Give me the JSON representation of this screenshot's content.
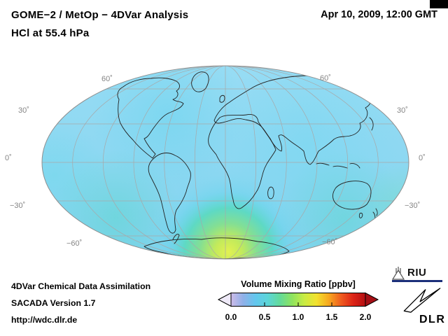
{
  "header": {
    "title_line1": "GOME−2 / MetOp − 4DVar Analysis",
    "title_line2": "HCl at 55.4 hPa",
    "datetime": "Apr 10, 2009, 12:00 GMT"
  },
  "map": {
    "projection": "Mollweide",
    "graticule_interval_deg": 30,
    "lat_labels": {
      "top_left": "60˚",
      "top_right": "60˚",
      "mid_upper_left": "30˚",
      "mid_upper_right": "30˚",
      "equator_left": "0˚",
      "equator_right": "0˚",
      "mid_lower_left": "−30˚",
      "mid_lower_right": "−30˚",
      "bottom_left": "−60˚",
      "bottom_right": "−60˚"
    },
    "colors": {
      "ocean_background": "#8cd8f2",
      "enhanced_region_max": "#e2f152",
      "coastline": "#222222",
      "graticule": "#a8a8a8"
    }
  },
  "colorbar": {
    "title": "Volume Mixing Ratio [ppbv]",
    "ticks": [
      "0.0",
      "0.5",
      "1.0",
      "1.5",
      "2.0"
    ],
    "min": 0.0,
    "max": 2.0,
    "units": "ppbv",
    "gradient": [
      "#cdbbe8",
      "#8fb0e8",
      "#63c7ee",
      "#5cd5d8",
      "#63da9a",
      "#8ee35f",
      "#c9ec44",
      "#f2e12e",
      "#f7a81f",
      "#ef5c1f",
      "#dd2417",
      "#b40f12"
    ],
    "under_arrow_color": "#efeaf8",
    "over_arrow_color": "#a50f15"
  },
  "footer": {
    "line1": "4DVar Chemical Data Assimilation",
    "line2": "SACADA Version 1.7",
    "line3": "http://wdc.dlr.de"
  },
  "logos": {
    "riu_text": "RIU",
    "dlr_text": "DLR"
  },
  "chart_data": {
    "type": "heatmap",
    "title": "GOME−2 / MetOp − 4DVar Analysis — HCl at 55.4 hPa",
    "datetime": "Apr 10, 2009, 12:00 GMT",
    "projection": "Mollweide world map with 30° graticule",
    "colorbar": {
      "label": "Volume Mixing Ratio [ppbv]",
      "ticks": [
        0.0,
        0.5,
        1.0,
        1.5,
        2.0
      ],
      "range": [
        0.0,
        2.0
      ]
    },
    "field_summary": {
      "global_background_ppbv": [
        0.4,
        0.7
      ],
      "tropics_midlatitudes_ppbv": 0.5,
      "southern_high_latitude_ring_ppbv": 0.8,
      "antarctic_maximum_ppbv": 1.2,
      "maximum_location": "over Antarctica (south polar region)",
      "pattern": "nearly uniform light-blue field (~0.4–0.7 ppbv) worldwide with a green-yellow enhancement up to ~1.2 ppbv centred on Antarctica"
    }
  }
}
